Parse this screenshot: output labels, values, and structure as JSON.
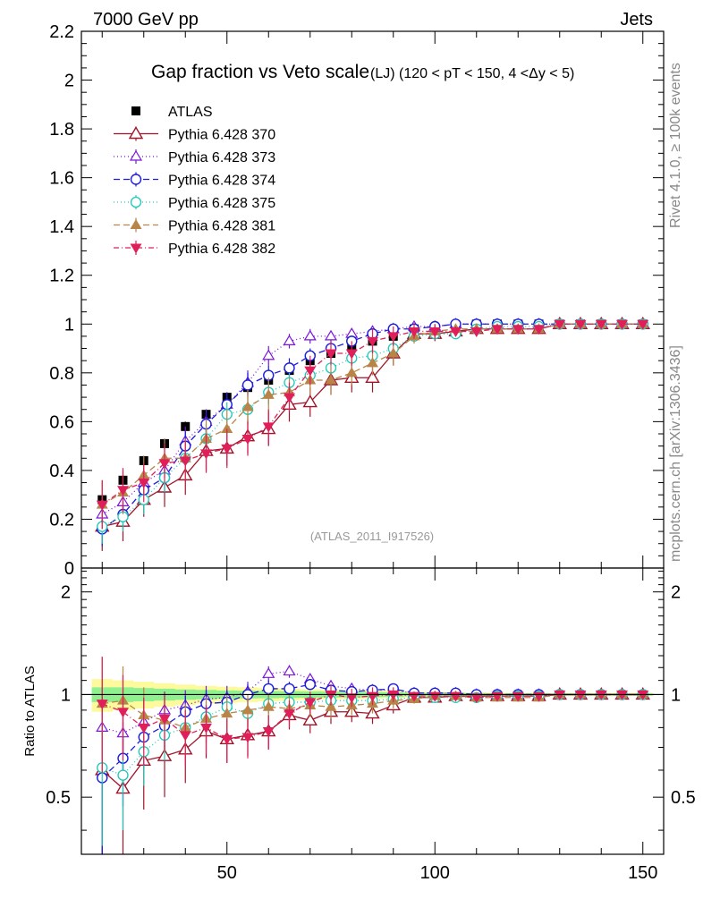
{
  "header": {
    "left": "7000 GeV pp",
    "right": "Jets"
  },
  "side_labels": {
    "rivet": "Rivet 4.1.0, ≥ 100k events",
    "mcplots": "mcplots.cern.ch [arXiv:1306.3436]"
  },
  "colors": {
    "data": "#000000",
    "band_inner": "#8ef08e",
    "band_outer": "#fdfa9d"
  },
  "chart_data": [
    {
      "type": "scatter",
      "title": "Gap fraction vs Veto scale",
      "title_suffix": "(LJ) (120 < pT < 150, 4 <Δy < 5)",
      "watermark": "(ATLAS_2011_I917526)",
      "xlabel": "",
      "ylabel": "",
      "xlim": [
        15,
        155
      ],
      "ylim": [
        0,
        2.2
      ],
      "yticks": [
        "0",
        "0.2",
        "0.4",
        "0.6",
        "0.8",
        "1",
        "1.2",
        "1.4",
        "1.6",
        "1.8",
        "2",
        "2.2"
      ],
      "ytick_values": [
        0,
        0.2,
        0.4,
        0.6,
        0.8,
        1,
        1.2,
        1.4,
        1.6,
        1.8,
        2,
        2.2
      ],
      "legend_position": "top-left",
      "x": [
        20,
        25,
        30,
        35,
        40,
        45,
        50,
        55,
        60,
        65,
        70,
        75,
        80,
        85,
        90,
        95,
        100,
        105,
        110,
        115,
        120,
        125,
        130,
        135,
        140,
        145,
        150
      ],
      "series": [
        {
          "name": "ATLAS",
          "color": "#000000",
          "marker": "square-filled",
          "dash": "none",
          "values": [
            0.28,
            0.36,
            0.44,
            0.51,
            0.58,
            0.63,
            0.7,
            0.74,
            0.77,
            0.81,
            0.85,
            0.88,
            0.91,
            0.93,
            0.95,
            0.98,
            0.98,
            0.99,
            1.0,
            1.0,
            1.0,
            1.0,
            1.0,
            1.0,
            1.0,
            1.0,
            1.0
          ],
          "err": [
            0.02,
            0.02,
            0.02,
            0.02,
            0.02,
            0.02,
            0.02,
            0.02,
            0.02,
            0.02,
            0.02,
            0.02,
            0.02,
            0.02,
            0.02,
            0.01,
            0.01,
            0.01,
            0.01,
            0.01,
            0.01,
            0.01,
            0.01,
            0.01,
            0.01,
            0.01,
            0.01
          ]
        },
        {
          "name": "Pythia 6.428 370",
          "color": "#a0142a",
          "marker": "triangle-open",
          "dash": "none",
          "values": [
            0.17,
            0.19,
            0.28,
            0.33,
            0.38,
            0.48,
            0.49,
            0.54,
            0.57,
            0.67,
            0.68,
            0.77,
            0.78,
            0.78,
            0.88,
            0.96,
            0.96,
            0.97,
            0.98,
            0.98,
            0.98,
            0.98,
            1.0,
            1.0,
            1.0,
            1.0,
            1.0
          ],
          "err": [
            0.1,
            0.08,
            0.07,
            0.08,
            0.08,
            0.08,
            0.07,
            0.07,
            0.07,
            0.07,
            0.06,
            0.06,
            0.06,
            0.06,
            0.05,
            0.03,
            0.03,
            0.02,
            0.02,
            0.02,
            0.02,
            0.01,
            0.01,
            0.01,
            0.01,
            0.01,
            0.01
          ]
        },
        {
          "name": "Pythia 6.428 373",
          "color": "#7b15d9",
          "marker": "triangle-open-small",
          "dash": "1,3",
          "values": [
            0.22,
            0.27,
            0.35,
            0.4,
            0.52,
            0.6,
            0.67,
            0.76,
            0.87,
            0.93,
            0.95,
            0.95,
            0.96,
            0.97,
            0.98,
            0.99,
            0.99,
            1.0,
            1.0,
            1.0,
            1.0,
            1.0,
            1.0,
            1.0,
            1.0,
            1.0,
            1.0
          ],
          "err": [
            0.07,
            0.06,
            0.06,
            0.06,
            0.06,
            0.05,
            0.05,
            0.05,
            0.04,
            0.03,
            0.03,
            0.02,
            0.02,
            0.02,
            0.02,
            0.01,
            0.01,
            0.01,
            0.01,
            0.01,
            0.01,
            0.01,
            0.01,
            0.01,
            0.01,
            0.01,
            0.01
          ]
        },
        {
          "name": "Pythia 6.428 374",
          "color": "#1c1cdc",
          "marker": "circle-open",
          "dash": "7,4",
          "values": [
            0.16,
            0.22,
            0.32,
            0.37,
            0.5,
            0.59,
            0.67,
            0.75,
            0.79,
            0.82,
            0.87,
            0.9,
            0.93,
            0.96,
            0.98,
            0.98,
            0.99,
            1.0,
            1.0,
            1.0,
            1.0,
            1.0,
            1.0,
            1.0,
            1.0,
            1.0,
            1.0
          ],
          "err": [
            0.07,
            0.06,
            0.06,
            0.06,
            0.06,
            0.05,
            0.05,
            0.05,
            0.04,
            0.04,
            0.03,
            0.03,
            0.02,
            0.02,
            0.02,
            0.01,
            0.01,
            0.01,
            0.01,
            0.01,
            0.01,
            0.01,
            0.01,
            0.01,
            0.01,
            0.01,
            0.01
          ]
        },
        {
          "name": "Pythia 6.428 375",
          "color": "#20c8b8",
          "marker": "circle-open-light",
          "dash": "1,3",
          "values": [
            0.17,
            0.21,
            0.28,
            0.37,
            0.45,
            0.53,
            0.63,
            0.65,
            0.72,
            0.76,
            0.79,
            0.82,
            0.86,
            0.87,
            0.9,
            0.95,
            0.96,
            0.96,
            0.98,
            0.99,
            0.99,
            0.99,
            1.0,
            1.0,
            1.0,
            1.0,
            1.0
          ],
          "err": [
            0.07,
            0.06,
            0.06,
            0.06,
            0.06,
            0.06,
            0.05,
            0.05,
            0.05,
            0.04,
            0.04,
            0.03,
            0.03,
            0.03,
            0.02,
            0.02,
            0.02,
            0.01,
            0.01,
            0.01,
            0.01,
            0.01,
            0.01,
            0.01,
            0.01,
            0.01,
            0.01
          ]
        },
        {
          "name": "Pythia 6.428 381",
          "color": "#b88447",
          "marker": "triangle-filled",
          "dash": "7,4",
          "values": [
            0.26,
            0.31,
            0.38,
            0.45,
            0.45,
            0.53,
            0.57,
            0.66,
            0.71,
            0.72,
            0.77,
            0.77,
            0.8,
            0.84,
            0.88,
            0.95,
            0.97,
            0.98,
            0.98,
            0.98,
            0.98,
            0.98,
            1.0,
            1.0,
            1.0,
            1.0,
            1.0
          ],
          "err": [
            0.1,
            0.09,
            0.08,
            0.08,
            0.08,
            0.08,
            0.08,
            0.07,
            0.07,
            0.06,
            0.06,
            0.06,
            0.05,
            0.05,
            0.05,
            0.03,
            0.03,
            0.02,
            0.02,
            0.02,
            0.02,
            0.01,
            0.01,
            0.01,
            0.01,
            0.01,
            0.01
          ]
        },
        {
          "name": "Pythia 6.428 382",
          "color": "#e01e5a",
          "marker": "triangle-down-filled",
          "dash": "6,3,1,3",
          "values": [
            0.26,
            0.32,
            0.35,
            0.43,
            0.44,
            0.47,
            0.49,
            0.53,
            0.58,
            0.7,
            0.81,
            0.88,
            0.88,
            0.93,
            0.95,
            0.97,
            0.97,
            0.97,
            0.97,
            0.98,
            0.98,
            0.98,
            1.0,
            1.0,
            1.0,
            1.0,
            1.0
          ],
          "err": [
            0.1,
            0.09,
            0.08,
            0.08,
            0.08,
            0.08,
            0.08,
            0.07,
            0.07,
            0.06,
            0.06,
            0.05,
            0.05,
            0.05,
            0.04,
            0.03,
            0.03,
            0.02,
            0.02,
            0.02,
            0.02,
            0.01,
            0.01,
            0.01,
            0.01,
            0.01,
            0.01
          ]
        }
      ]
    },
    {
      "type": "scatter",
      "title": "",
      "xlabel": "",
      "ylabel": "Ratio to ATLAS",
      "xlim": [
        15,
        155
      ],
      "ylim": [
        0.34,
        2.35
      ],
      "yscale": "log",
      "yticks": [
        "0.5",
        "1",
        "2"
      ],
      "ytick_values": [
        0.5,
        1,
        2
      ],
      "xticks": [
        "50",
        "100",
        "150"
      ],
      "xtick_values": [
        50,
        100,
        150
      ],
      "band": {
        "x": [
          20,
          25,
          30,
          35,
          40,
          45,
          50,
          55,
          60,
          65,
          70,
          75,
          80,
          85,
          90,
          95,
          100,
          105,
          110,
          115,
          120,
          125,
          130,
          135,
          140,
          145,
          150
        ],
        "inner": [
          0.05,
          0.05,
          0.045,
          0.04,
          0.035,
          0.032,
          0.028,
          0.026,
          0.025,
          0.023,
          0.022,
          0.02,
          0.02,
          0.018,
          0.016,
          0.012,
          0.011,
          0.01,
          0.01,
          0.008,
          0.008,
          0.008,
          0.007,
          0.007,
          0.007,
          0.007,
          0.007
        ],
        "outer": [
          0.11,
          0.1,
          0.09,
          0.08,
          0.07,
          0.06,
          0.055,
          0.05,
          0.045,
          0.04,
          0.035,
          0.032,
          0.03,
          0.028,
          0.025,
          0.02,
          0.018,
          0.016,
          0.015,
          0.013,
          0.012,
          0.012,
          0.011,
          0.011,
          0.011,
          0.011,
          0.011
        ]
      },
      "series": [
        {
          "name": "Pythia 6.428 370",
          "values": [
            0.6,
            0.53,
            0.64,
            0.66,
            0.69,
            0.78,
            0.74,
            0.76,
            0.78,
            0.87,
            0.84,
            0.89,
            0.89,
            0.88,
            0.93,
            0.98,
            0.98,
            0.99,
            0.99,
            0.99,
            0.99,
            0.99,
            1.0,
            1.0,
            1.0,
            1.0,
            1.0
          ],
          "err": [
            0.4,
            0.25,
            0.18,
            0.16,
            0.14,
            0.13,
            0.11,
            0.1,
            0.09,
            0.08,
            0.07,
            0.07,
            0.06,
            0.06,
            0.05,
            0.03,
            0.03,
            0.02,
            0.02,
            0.02,
            0.02,
            0.01,
            0.01,
            0.01,
            0.01,
            0.01,
            0.01
          ]
        },
        {
          "name": "Pythia 6.428 373",
          "values": [
            0.8,
            0.77,
            0.83,
            0.9,
            0.93,
            0.97,
            0.98,
            1.02,
            1.15,
            1.17,
            1.11,
            1.06,
            1.04,
            1.03,
            1.03,
            1.01,
            1.01,
            1.01,
            1.0,
            1.0,
            1.0,
            1.0,
            1.0,
            1.0,
            1.0,
            1.0,
            1.0
          ],
          "err": [
            0.25,
            0.18,
            0.14,
            0.12,
            0.1,
            0.09,
            0.08,
            0.07,
            0.06,
            0.05,
            0.04,
            0.03,
            0.03,
            0.02,
            0.02,
            0.01,
            0.01,
            0.01,
            0.01,
            0.01,
            0.01,
            0.01,
            0.01,
            0.01,
            0.01,
            0.01,
            0.01
          ]
        },
        {
          "name": "Pythia 6.428 374",
          "values": [
            0.57,
            0.65,
            0.75,
            0.81,
            0.89,
            0.94,
            0.95,
            1.0,
            1.04,
            1.04,
            1.07,
            1.03,
            1.02,
            1.03,
            1.04,
            1.01,
            1.01,
            1.01,
            1.0,
            1.0,
            1.0,
            1.0,
            1.0,
            1.0,
            1.0,
            1.0,
            1.0
          ],
          "err": [
            0.25,
            0.18,
            0.14,
            0.12,
            0.1,
            0.09,
            0.08,
            0.07,
            0.06,
            0.05,
            0.04,
            0.03,
            0.03,
            0.02,
            0.02,
            0.01,
            0.01,
            0.01,
            0.01,
            0.01,
            0.01,
            0.01,
            0.01,
            0.01,
            0.01,
            0.01,
            0.01
          ]
        },
        {
          "name": "Pythia 6.428 375",
          "values": [
            0.61,
            0.58,
            0.68,
            0.76,
            0.8,
            0.86,
            0.92,
            0.88,
            0.94,
            0.95,
            0.95,
            0.96,
            0.96,
            0.96,
            0.97,
            0.98,
            0.98,
            0.98,
            0.98,
            0.99,
            0.99,
            0.99,
            1.0,
            1.0,
            1.0,
            1.0,
            1.0
          ],
          "err": [
            0.25,
            0.18,
            0.14,
            0.12,
            0.1,
            0.09,
            0.08,
            0.07,
            0.06,
            0.05,
            0.04,
            0.03,
            0.03,
            0.02,
            0.02,
            0.01,
            0.01,
            0.01,
            0.01,
            0.01,
            0.01,
            0.01,
            0.01,
            0.01,
            0.01,
            0.01,
            0.01
          ]
        },
        {
          "name": "Pythia 6.428 381",
          "values": [
            0.94,
            0.96,
            0.87,
            0.84,
            0.8,
            0.85,
            0.88,
            0.9,
            0.92,
            0.91,
            0.93,
            0.92,
            0.93,
            0.94,
            0.96,
            0.97,
            0.99,
            0.99,
            0.98,
            0.98,
            0.98,
            0.98,
            1.0,
            1.0,
            1.0,
            1.0,
            1.0
          ],
          "err": [
            0.35,
            0.25,
            0.18,
            0.16,
            0.14,
            0.13,
            0.11,
            0.1,
            0.09,
            0.08,
            0.07,
            0.07,
            0.06,
            0.06,
            0.05,
            0.03,
            0.03,
            0.02,
            0.02,
            0.02,
            0.02,
            0.01,
            0.01,
            0.01,
            0.01,
            0.01,
            0.01
          ]
        },
        {
          "name": "Pythia 6.428 382",
          "values": [
            0.94,
            0.89,
            0.8,
            0.85,
            0.76,
            0.8,
            0.74,
            0.75,
            0.78,
            0.88,
            0.95,
            1.0,
            0.98,
            0.99,
            1.0,
            0.99,
            0.99,
            0.99,
            0.98,
            0.99,
            0.99,
            0.99,
            1.0,
            1.0,
            1.0,
            1.0,
            1.0
          ],
          "err": [
            0.35,
            0.25,
            0.18,
            0.16,
            0.14,
            0.13,
            0.11,
            0.1,
            0.09,
            0.08,
            0.07,
            0.07,
            0.06,
            0.06,
            0.05,
            0.03,
            0.03,
            0.02,
            0.02,
            0.02,
            0.02,
            0.01,
            0.01,
            0.01,
            0.01,
            0.01,
            0.01
          ]
        }
      ]
    }
  ]
}
